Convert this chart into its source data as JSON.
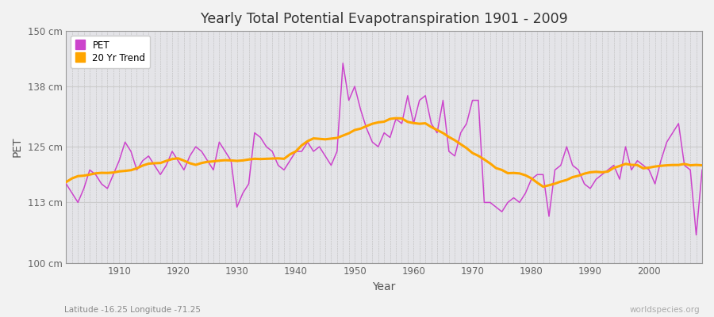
{
  "title": "Yearly Total Potential Evapotranspiration 1901 - 2009",
  "xlabel": "Year",
  "ylabel": "PET",
  "subtitle": "Latitude -16.25 Longitude -71.25",
  "watermark": "worldspecies.org",
  "pet_color": "#cc44cc",
  "trend_color": "#ffa500",
  "fig_bg_color": "#f0f0f0",
  "plot_bg_color": "#e0e0e4",
  "ylim": [
    100,
    150
  ],
  "yticks": [
    100,
    113,
    125,
    138,
    150
  ],
  "ytick_labels": [
    "100 cm",
    "113 cm",
    "125 cm",
    "138 cm",
    "150 cm"
  ],
  "start_year": 1901,
  "end_year": 2009,
  "pet_values": [
    117,
    115,
    113,
    116,
    120,
    119,
    117,
    116,
    119,
    122,
    126,
    124,
    120,
    122,
    123,
    121,
    119,
    121,
    124,
    122,
    120,
    123,
    125,
    124,
    122,
    120,
    126,
    124,
    122,
    112,
    115,
    117,
    128,
    127,
    125,
    124,
    121,
    120,
    122,
    124,
    124,
    126,
    124,
    125,
    123,
    121,
    124,
    143,
    135,
    138,
    133,
    129,
    126,
    125,
    128,
    127,
    131,
    130,
    136,
    130,
    135,
    136,
    130,
    128,
    135,
    124,
    123,
    128,
    130,
    135,
    135,
    113,
    113,
    112,
    111,
    113,
    114,
    113,
    115,
    118,
    119,
    119,
    110,
    120,
    121,
    125,
    121,
    120,
    117,
    116,
    118,
    119,
    120,
    121,
    118,
    125,
    120,
    122,
    121,
    120,
    117,
    122,
    126,
    128,
    130,
    121,
    120,
    106,
    120
  ]
}
